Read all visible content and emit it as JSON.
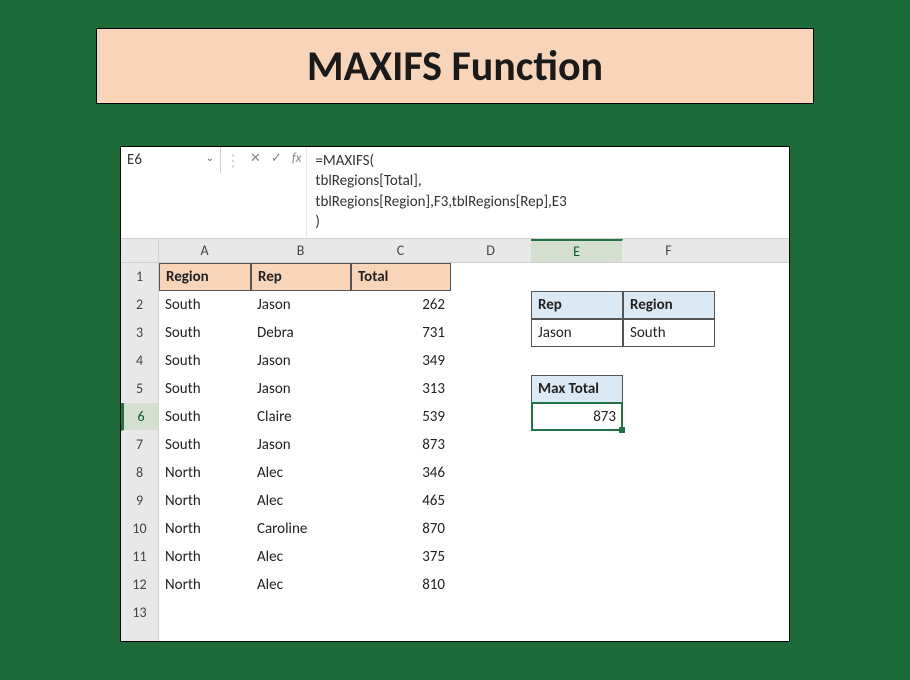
{
  "title": "MAXIFS Function",
  "nameBox": "E6",
  "formula": {
    "line1": "=MAXIFS(",
    "line2": "tblRegions[Total],",
    "line3": "tblRegions[Region],F3,tblRegions[Rep],E3",
    "line4": ")"
  },
  "columns": [
    "A",
    "B",
    "C",
    "D",
    "E",
    "F"
  ],
  "rowNumbers": [
    "1",
    "2",
    "3",
    "4",
    "5",
    "6",
    "7",
    "8",
    "9",
    "10",
    "11",
    "12",
    "13"
  ],
  "selectedRow": 6,
  "selectedCol": "E",
  "tableHeaders": {
    "region": "Region",
    "rep": "Rep",
    "total": "Total"
  },
  "tableRows": [
    {
      "region": "South",
      "rep": "Jason",
      "total": "262"
    },
    {
      "region": "South",
      "rep": "Debra",
      "total": "731"
    },
    {
      "region": "South",
      "rep": "Jason",
      "total": "349"
    },
    {
      "region": "South",
      "rep": "Jason",
      "total": "313"
    },
    {
      "region": "South",
      "rep": "Claire",
      "total": "539"
    },
    {
      "region": "South",
      "rep": "Jason",
      "total": "873"
    },
    {
      "region": "North",
      "rep": "Alec",
      "total": "346"
    },
    {
      "region": "North",
      "rep": "Alec",
      "total": "465"
    },
    {
      "region": "North",
      "rep": "Caroline",
      "total": "870"
    },
    {
      "region": "North",
      "rep": "Alec",
      "total": "375"
    },
    {
      "region": "North",
      "rep": "Alec",
      "total": "810"
    }
  ],
  "lookup": {
    "repHeader": "Rep",
    "regionHeader": "Region",
    "repValue": "Jason",
    "regionValue": "South"
  },
  "result": {
    "header": "Max Total",
    "value": "873"
  },
  "colors": {
    "background": "#1e6b3a",
    "banner": "#f8d5b8",
    "tableHeader": "#f8d5b8",
    "lookupHeader": "#dbe9f5",
    "selection": "#217346"
  }
}
